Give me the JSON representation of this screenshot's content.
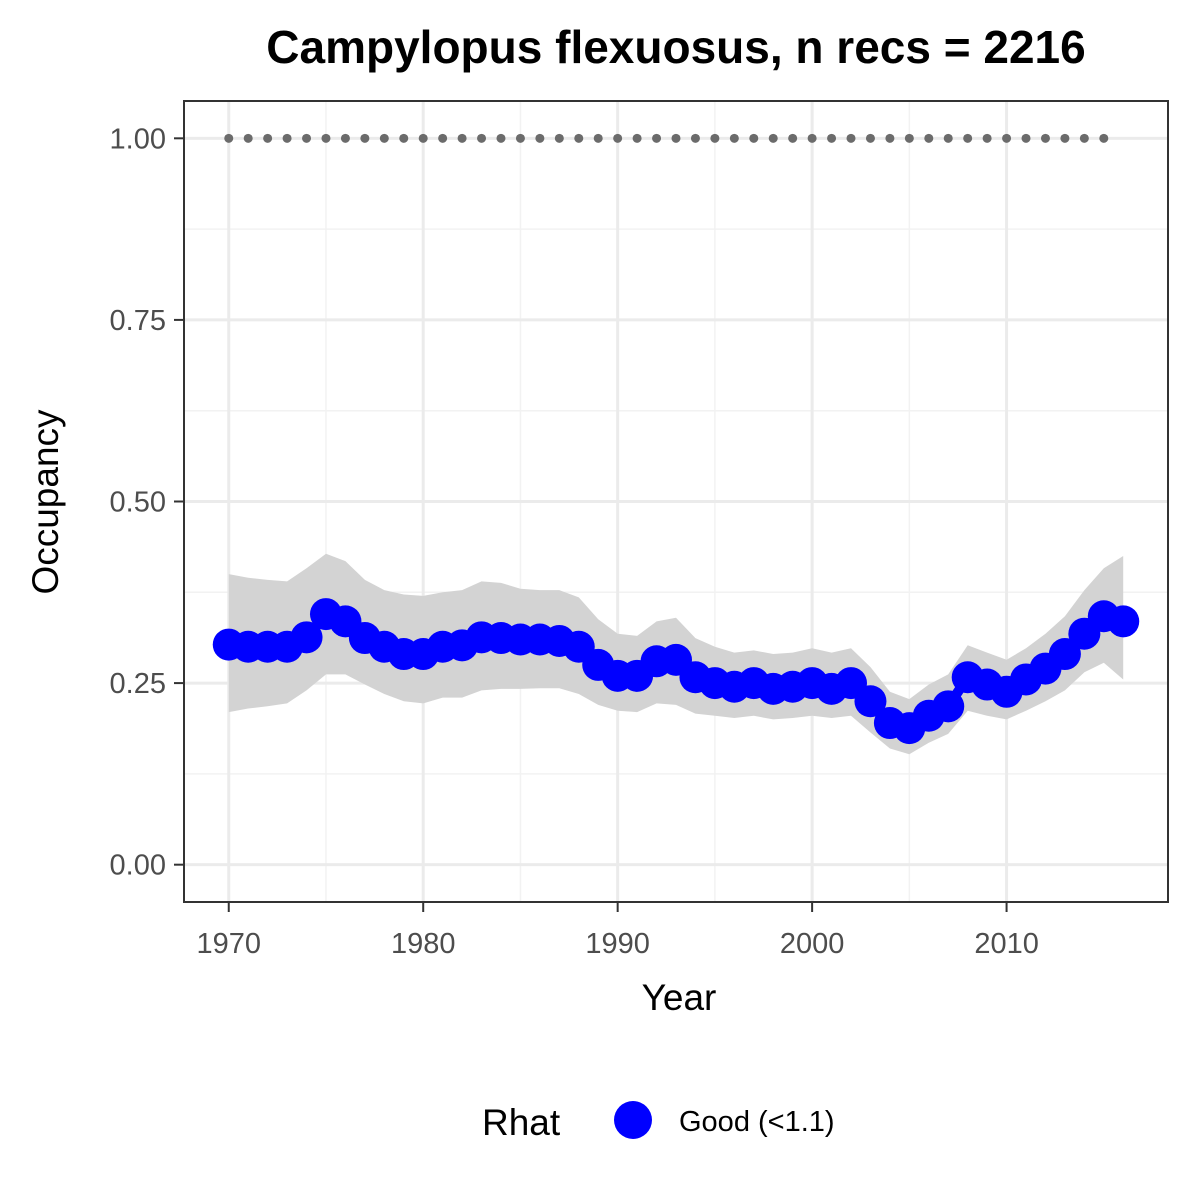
{
  "chart_data": {
    "type": "line",
    "title": "Campylopus flexuosus, n recs = 2216",
    "xlabel": "Year",
    "ylabel": "Occupancy",
    "xlim": [
      1967.75,
      2018.25
    ],
    "ylim": [
      -0.05,
      1.05
    ],
    "x_ticks": [
      1970,
      1980,
      1990,
      2000,
      2010
    ],
    "x_tick_labels": [
      "1970",
      "1980",
      "1990",
      "2000",
      "2010"
    ],
    "y_ticks": [
      0,
      0.25,
      0.5,
      0.75,
      1.0
    ],
    "y_tick_labels": [
      "0.00",
      "0.25",
      "0.50",
      "0.75",
      "1.00"
    ],
    "grid": true,
    "legend_position": "bottom",
    "legend_title": "Rhat",
    "x": [
      1970,
      1971,
      1972,
      1973,
      1974,
      1975,
      1976,
      1977,
      1978,
      1979,
      1980,
      1981,
      1982,
      1983,
      1984,
      1985,
      1986,
      1987,
      1988,
      1989,
      1990,
      1991,
      1992,
      1993,
      1994,
      1995,
      1996,
      1997,
      1998,
      1999,
      2000,
      2001,
      2002,
      2003,
      2004,
      2005,
      2006,
      2007,
      2008,
      2009,
      2010,
      2011,
      2012,
      2013,
      2014,
      2015,
      2016
    ],
    "series": [
      {
        "name": "Good (<1.1)",
        "color": "#0000ff",
        "values": [
          0.303,
          0.3,
          0.3,
          0.3,
          0.313,
          0.345,
          0.335,
          0.312,
          0.3,
          0.29,
          0.29,
          0.3,
          0.302,
          0.313,
          0.312,
          0.31,
          0.31,
          0.308,
          0.3,
          0.275,
          0.26,
          0.26,
          0.28,
          0.282,
          0.258,
          0.25,
          0.245,
          0.25,
          0.242,
          0.245,
          0.25,
          0.242,
          0.25,
          0.225,
          0.195,
          0.188,
          0.205,
          0.218,
          0.258,
          0.248,
          0.238,
          0.255,
          0.27,
          0.29,
          0.318,
          0.342,
          0.335
        ],
        "lower": [
          0.21,
          0.215,
          0.218,
          0.222,
          0.24,
          0.262,
          0.262,
          0.248,
          0.235,
          0.225,
          0.222,
          0.23,
          0.23,
          0.24,
          0.242,
          0.242,
          0.243,
          0.243,
          0.235,
          0.22,
          0.212,
          0.21,
          0.222,
          0.22,
          0.208,
          0.205,
          0.202,
          0.205,
          0.2,
          0.202,
          0.205,
          0.202,
          0.205,
          0.182,
          0.16,
          0.152,
          0.168,
          0.18,
          0.212,
          0.205,
          0.2,
          0.212,
          0.225,
          0.24,
          0.265,
          0.278,
          0.255
        ],
        "upper": [
          0.4,
          0.395,
          0.392,
          0.39,
          0.408,
          0.428,
          0.418,
          0.392,
          0.378,
          0.372,
          0.37,
          0.375,
          0.378,
          0.39,
          0.388,
          0.38,
          0.378,
          0.378,
          0.368,
          0.338,
          0.318,
          0.315,
          0.335,
          0.34,
          0.312,
          0.3,
          0.292,
          0.295,
          0.29,
          0.292,
          0.298,
          0.292,
          0.298,
          0.272,
          0.238,
          0.228,
          0.248,
          0.262,
          0.302,
          0.292,
          0.282,
          0.298,
          0.318,
          0.342,
          0.378,
          0.408,
          0.425
        ]
      }
    ],
    "reference_series": {
      "color": "#6b6b6b",
      "x": [
        1970,
        1971,
        1972,
        1973,
        1974,
        1975,
        1976,
        1977,
        1978,
        1979,
        1980,
        1981,
        1982,
        1983,
        1984,
        1985,
        1986,
        1987,
        1988,
        1989,
        1990,
        1991,
        1992,
        1993,
        1994,
        1995,
        1996,
        1997,
        1998,
        1999,
        2000,
        2001,
        2002,
        2003,
        2004,
        2005,
        2006,
        2007,
        2008,
        2009,
        2010,
        2011,
        2012,
        2013,
        2014,
        2015
      ],
      "value": 1.0
    },
    "ribbon_color": "#d3d3d3"
  }
}
